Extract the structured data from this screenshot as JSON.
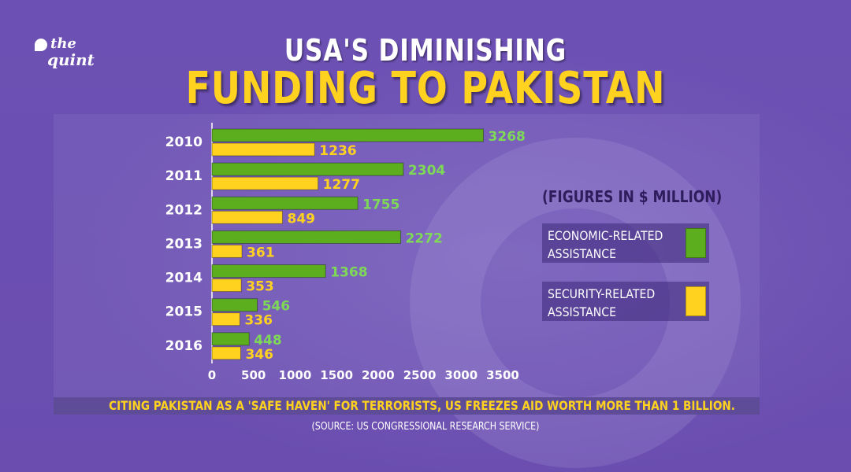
{
  "brand": {
    "line1": "the",
    "line2": "quint"
  },
  "title": {
    "line1": "USA'S DIMINISHING",
    "line2": "FUNDING TO PAKISTAN"
  },
  "note": "(FIGURES IN $ MILLION)",
  "legend": [
    {
      "label": "ECONOMIC-RELATED\nASSISTANCE",
      "color": "#5cae1e"
    },
    {
      "label": "SECURITY-RELATED\nASSISTANCE",
      "color": "#ffd21f"
    }
  ],
  "banner": "CITING PAKISTAN AS A 'SAFE HAVEN' FOR TERRORISTS, US FREEZES AID WORTH MORE THAN 1 BILLION.",
  "source": "(SOURCE: US CONGRESSIONAL RESEARCH SERVICE)",
  "colors": {
    "economic": "#5cae1e",
    "security": "#ffd21f",
    "economic_label": "#7ed957",
    "security_label": "#ffd21f"
  },
  "chart_data": {
    "type": "bar",
    "orientation": "horizontal",
    "title": "USA'S DIMINISHING FUNDING TO PAKISTAN",
    "categories": [
      "2010",
      "2011",
      "2012",
      "2013",
      "2014",
      "2015",
      "2016"
    ],
    "series": [
      {
        "name": "ECONOMIC-RELATED ASSISTANCE",
        "values": [
          3268,
          2304,
          1755,
          2272,
          1368,
          546,
          448
        ]
      },
      {
        "name": "SECURITY-RELATED ASSISTANCE",
        "values": [
          1236,
          1277,
          849,
          361,
          353,
          336,
          346
        ]
      }
    ],
    "xlim": [
      0,
      3500
    ],
    "xticks": [
      0,
      500,
      1000,
      1500,
      2000,
      2500,
      3000,
      3500
    ],
    "grid": false,
    "data_labels": true,
    "legend_position": "right"
  }
}
